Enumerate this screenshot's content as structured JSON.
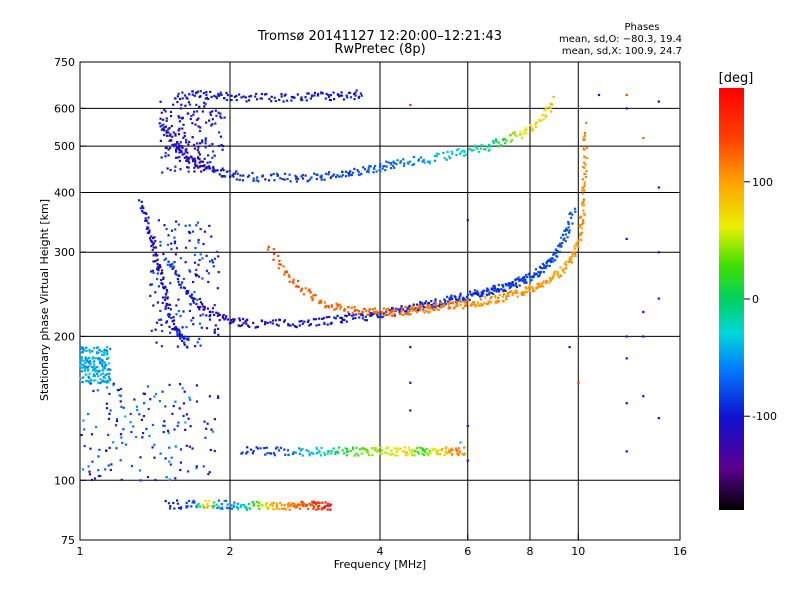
{
  "title_line1": "Tromsø 20141127 12:20:00–12:21:43",
  "title_line2": "RwPretec (8p)",
  "stats": {
    "heading": "Phases",
    "line1": "mean, sd,O: −80.3, 19.4",
    "line2": "mean, sd,X: 100.9, 24.7"
  },
  "chart_data": {
    "type": "scatter",
    "xlabel": "Frequency [MHz]",
    "ylabel": "Stationary phase Virtual Height [km]",
    "x_scale": "log",
    "y_scale": "log",
    "xlim": [
      1,
      16
    ],
    "ylim": [
      75,
      750
    ],
    "grid": true,
    "x_ticks": [
      1,
      2,
      4,
      6,
      8,
      10,
      16
    ],
    "y_ticks": [
      75,
      100,
      200,
      300,
      400,
      500,
      600,
      750
    ],
    "colorbar": {
      "label": "[deg]",
      "range": [
        -180,
        180
      ],
      "ticks": [
        100,
        0,
        -100
      ],
      "colormap": "rainbow"
    },
    "series": [
      {
        "x": [
          1.52,
          1.58,
          1.65,
          1.72,
          1.8,
          1.9,
          2.0,
          2.1,
          2.2,
          2.4,
          2.6,
          2.8,
          3.0,
          3.2,
          3.4,
          3.6,
          3.8,
          4.0,
          4.2,
          4.4,
          4.6,
          4.8,
          5.0,
          5.2,
          5.4,
          5.6,
          5.8,
          6.0,
          6.2,
          6.4,
          6.6,
          6.8,
          7.0,
          7.2,
          7.4,
          7.6,
          7.8,
          8.0,
          8.2,
          8.4,
          8.6,
          8.8,
          9.0,
          9.2,
          9.4,
          9.6,
          9.8
        ],
        "y": [
          282,
          262,
          246,
          234,
          225,
          219,
          216,
          214,
          213,
          213,
          213,
          214,
          215,
          216,
          218,
          219,
          221,
          223,
          225,
          227,
          229,
          231,
          233,
          235,
          237,
          239,
          241,
          243,
          245,
          247,
          249,
          251,
          253,
          255,
          257,
          260,
          263,
          266,
          270,
          275,
          281,
          289,
          298,
          310,
          325,
          345,
          370
        ],
        "phase": [
          -95,
          -100,
          -102,
          -105,
          -108,
          -110,
          -112,
          -110,
          -108,
          -106,
          -104,
          -102,
          -100,
          -100,
          -98,
          -97,
          -96,
          -95,
          -95,
          -94,
          -93,
          -92,
          -92,
          -91,
          -90,
          -90,
          -89,
          -88,
          -88,
          -87,
          -86,
          -86,
          -85,
          -84,
          -84,
          -83,
          -82,
          -82,
          -81,
          -80,
          -80,
          -79,
          -78,
          -78,
          -77,
          -76,
          -75
        ]
      },
      {
        "x": [
          2.4,
          2.55,
          2.7,
          2.85,
          3.0,
          3.2,
          3.4,
          3.6,
          3.8,
          4.0,
          4.2,
          4.4,
          4.6,
          4.8,
          5.0,
          5.2,
          5.4,
          5.6,
          5.8,
          6.0,
          6.3,
          6.6,
          6.9,
          7.2,
          7.5,
          7.8,
          8.1,
          8.4,
          8.7,
          9.0,
          9.3,
          9.6,
          9.8,
          10.0,
          10.1,
          10.2,
          10.25,
          10.3,
          10.32,
          10.35
        ],
        "y": [
          305,
          278,
          260,
          247,
          239,
          232,
          228,
          226,
          225,
          225,
          225,
          226,
          227,
          228,
          229,
          230,
          231,
          232,
          233,
          234,
          236,
          238,
          240,
          243,
          246,
          249,
          253,
          257,
          262,
          268,
          275,
          286,
          298,
          315,
          335,
          360,
          390,
          430,
          480,
          560
        ],
        "phase": [
          140,
          135,
          132,
          130,
          128,
          126,
          125,
          124,
          123,
          122,
          121,
          120,
          119,
          118,
          117,
          116,
          115,
          114,
          113,
          112,
          110,
          109,
          108,
          107,
          106,
          105,
          104,
          103,
          102,
          101,
          100,
          100,
          101,
          102,
          104,
          106,
          108,
          110,
          112,
          115
        ]
      },
      {
        "x": [
          1.45,
          1.5,
          1.55,
          1.6,
          1.65,
          1.7,
          1.75,
          1.8,
          1.9,
          2.0,
          2.1,
          2.3,
          2.5,
          2.7,
          2.9,
          3.1,
          3.3,
          3.5,
          3.7,
          3.9,
          4.1,
          4.3,
          4.6,
          5.0,
          5.4,
          5.8,
          6.2,
          6.6,
          7.0,
          7.4,
          7.8,
          8.2,
          8.6,
          9.0
        ],
        "y": [
          560,
          530,
          505,
          490,
          475,
          465,
          458,
          450,
          442,
          437,
          433,
          430,
          430,
          430,
          431,
          433,
          436,
          440,
          445,
          450,
          455,
          460,
          465,
          470,
          478,
          485,
          492,
          500,
          510,
          522,
          535,
          555,
          585,
          630
        ],
        "phase": [
          -100,
          -105,
          -108,
          -110,
          -112,
          -115,
          -112,
          -110,
          -100,
          -95,
          -90,
          -88,
          -86,
          -85,
          -84,
          -82,
          -80,
          -78,
          -75,
          -72,
          -70,
          -68,
          -60,
          -50,
          -40,
          -30,
          -20,
          -10,
          10,
          40,
          60,
          70,
          80,
          85
        ]
      },
      {
        "x": [
          1.55,
          1.65,
          1.75,
          1.85,
          1.95,
          2.1,
          2.3,
          2.5,
          2.7,
          2.9,
          3.1,
          3.3,
          3.5,
          3.7
        ],
        "y": [
          640,
          640,
          640,
          638,
          636,
          634,
          632,
          630,
          632,
          634,
          636,
          638,
          640,
          642
        ],
        "phase": [
          -95,
          -96,
          -97,
          -98,
          -98,
          -99,
          -100,
          -100,
          -99,
          -98,
          -97,
          -96,
          -95,
          -94
        ]
      },
      {
        "x": [
          2.1,
          2.3,
          2.5,
          2.7,
          2.9,
          3.1,
          3.3,
          3.5,
          3.7,
          3.9,
          4.1,
          4.3,
          4.5,
          4.7,
          4.9,
          5.1,
          5.3,
          5.5,
          5.7,
          5.9
        ],
        "y": [
          115,
          115,
          115,
          115,
          115,
          115,
          115,
          115,
          115,
          115,
          115,
          115,
          115,
          115,
          115,
          115,
          115,
          115,
          115,
          115
        ],
        "phase": [
          -95,
          -90,
          -80,
          -60,
          -40,
          -20,
          0,
          20,
          30,
          40,
          50,
          60,
          80,
          40,
          20,
          60,
          80,
          100,
          120,
          100
        ]
      },
      {
        "x": [
          1.5,
          1.6,
          1.7,
          1.8,
          1.9,
          2.0,
          2.1,
          2.2,
          2.3,
          2.4,
          2.5,
          2.6,
          2.7,
          2.8,
          2.9,
          3.0,
          3.1,
          3.2
        ],
        "y": [
          89,
          89,
          89,
          89,
          89,
          89,
          88.5,
          88.5,
          88.5,
          88.5,
          88.5,
          88.5,
          88.5,
          88.5,
          88.5,
          88.5,
          88.5,
          88.5
        ],
        "phase": [
          -100,
          -90,
          -80,
          100,
          -70,
          -60,
          -40,
          0,
          40,
          80,
          100,
          110,
          120,
          130,
          140,
          150,
          160,
          170
        ]
      },
      {
        "x": [
          1.32,
          1.35,
          1.38,
          1.4,
          1.43,
          1.45,
          1.48,
          1.5,
          1.53,
          1.56,
          1.6,
          1.65
        ],
        "y": [
          380,
          360,
          330,
          310,
          290,
          270,
          250,
          230,
          215,
          205,
          198,
          192
        ],
        "phase": [
          -95,
          -100,
          -105,
          -110,
          -110,
          -108,
          -105,
          -102,
          -100,
          -98,
          -95,
          -92
        ]
      }
    ],
    "scatter_clouds": [
      {
        "x_range": [
          1.38,
          1.9
        ],
        "y_range": [
          190,
          350
        ],
        "phase_range": [
          -130,
          -60
        ]
      },
      {
        "x_range": [
          1.45,
          1.95
        ],
        "y_range": [
          440,
          620
        ],
        "phase_range": [
          -130,
          -80
        ]
      },
      {
        "x_range": [
          1.0,
          1.9
        ],
        "y_range": [
          100,
          160
        ],
        "phase_range": [
          -130,
          -40
        ]
      },
      {
        "x_range": [
          1.0,
          1.15
        ],
        "y_range": [
          160,
          190
        ],
        "phase_range": [
          -60,
          -30
        ]
      }
    ],
    "sparse_points": [
      {
        "x": 4.6,
        "y": 610,
        "phase": 150
      },
      {
        "x": 4.6,
        "y": 190,
        "phase": -100
      },
      {
        "x": 4.6,
        "y": 160,
        "phase": -110
      },
      {
        "x": 4.6,
        "y": 140,
        "phase": -105
      },
      {
        "x": 5.8,
        "y": 120,
        "phase": -40
      },
      {
        "x": 6.0,
        "y": 350,
        "phase": -110
      },
      {
        "x": 6.0,
        "y": 130,
        "phase": -110
      },
      {
        "x": 6.0,
        "y": 110,
        "phase": -105
      },
      {
        "x": 9.6,
        "y": 190,
        "phase": -100
      },
      {
        "x": 10.0,
        "y": 160,
        "phase": 150
      },
      {
        "x": 12.5,
        "y": 600,
        "phase": -110
      },
      {
        "x": 12.5,
        "y": 320,
        "phase": -100
      },
      {
        "x": 12.5,
        "y": 200,
        "phase": -105
      },
      {
        "x": 12.5,
        "y": 180,
        "phase": -100
      },
      {
        "x": 12.5,
        "y": 145,
        "phase": -110
      },
      {
        "x": 12.5,
        "y": 115,
        "phase": -100
      },
      {
        "x": 13.5,
        "y": 520,
        "phase": 120
      },
      {
        "x": 13.5,
        "y": 225,
        "phase": -100
      },
      {
        "x": 13.5,
        "y": 200,
        "phase": -110
      },
      {
        "x": 13.5,
        "y": 150,
        "phase": -100
      },
      {
        "x": 14.5,
        "y": 620,
        "phase": -105
      },
      {
        "x": 14.5,
        "y": 410,
        "phase": -100
      },
      {
        "x": 14.5,
        "y": 300,
        "phase": -110
      },
      {
        "x": 14.5,
        "y": 240,
        "phase": -105
      },
      {
        "x": 14.5,
        "y": 135,
        "phase": -100
      },
      {
        "x": 12.5,
        "y": 640,
        "phase": 140
      },
      {
        "x": 11.0,
        "y": 640,
        "phase": -100
      }
    ]
  }
}
